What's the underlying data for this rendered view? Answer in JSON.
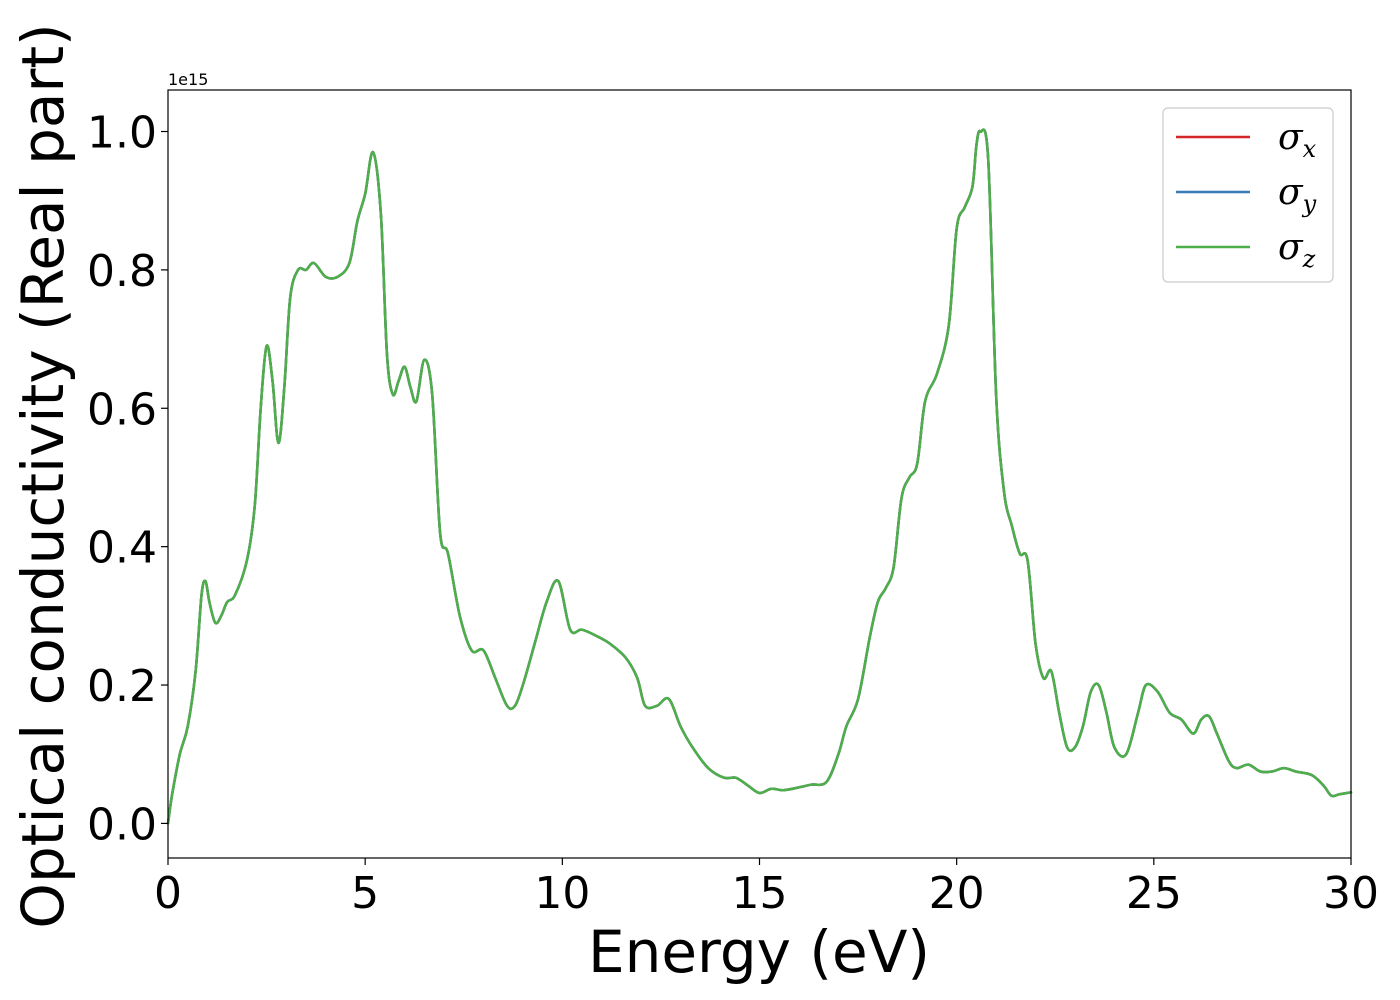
{
  "chart_data": {
    "type": "line",
    "title": "",
    "xlabel": "Energy (eV)",
    "ylabel": "Optical conductivity (Real part)",
    "y_offset_label": "1e15",
    "xlim": [
      0,
      30
    ],
    "ylim": [
      -0.05,
      1.06
    ],
    "x_ticks": [
      0,
      5,
      10,
      15,
      20,
      25,
      30
    ],
    "x_tick_labels": [
      "0",
      "5",
      "10",
      "15",
      "20",
      "25",
      "30"
    ],
    "y_ticks": [
      0.0,
      0.2,
      0.4,
      0.6,
      0.8,
      1.0
    ],
    "y_tick_labels": [
      "0.0",
      "0.2",
      "0.4",
      "0.6",
      "0.8",
      "1.0"
    ],
    "grid": false,
    "legend_position": "top-right",
    "x": [
      0,
      0.1,
      0.3,
      0.5,
      0.7,
      0.85,
      0.95,
      1.05,
      1.2,
      1.35,
      1.5,
      1.7,
      2.0,
      2.2,
      2.35,
      2.5,
      2.65,
      2.8,
      2.95,
      3.1,
      3.3,
      3.5,
      3.7,
      4.0,
      4.3,
      4.6,
      4.8,
      5.0,
      5.2,
      5.4,
      5.55,
      5.7,
      5.85,
      6.0,
      6.15,
      6.3,
      6.5,
      6.7,
      6.9,
      7.1,
      7.4,
      7.7,
      8.0,
      8.3,
      8.6,
      8.8,
      9.0,
      9.3,
      9.6,
      9.9,
      10.2,
      10.5,
      10.9,
      11.2,
      11.6,
      11.9,
      12.1,
      12.4,
      12.7,
      13.0,
      13.3,
      13.7,
      14.1,
      14.4,
      14.7,
      15.0,
      15.3,
      15.6,
      16.0,
      16.3,
      16.7,
      17.0,
      17.2,
      17.5,
      17.8,
      18.0,
      18.2,
      18.4,
      18.6,
      18.8,
      19.0,
      19.2,
      19.5,
      19.8,
      20.0,
      20.2,
      20.4,
      20.5,
      20.6,
      20.8,
      21.0,
      21.2,
      21.4,
      21.6,
      21.8,
      22.0,
      22.2,
      22.4,
      22.6,
      22.8,
      23.0,
      23.2,
      23.4,
      23.6,
      23.8,
      24.0,
      24.3,
      24.6,
      24.8,
      25.1,
      25.4,
      25.7,
      26.0,
      26.2,
      26.4,
      26.6,
      26.9,
      27.1,
      27.4,
      27.7,
      28.0,
      28.3,
      28.6,
      29.0,
      29.3,
      29.5,
      29.7,
      30.0
    ],
    "series": [
      {
        "name": "σx",
        "color": "#d62728",
        "values": [
          0.0,
          0.04,
          0.1,
          0.14,
          0.22,
          0.33,
          0.35,
          0.32,
          0.29,
          0.3,
          0.32,
          0.33,
          0.38,
          0.46,
          0.6,
          0.69,
          0.64,
          0.55,
          0.63,
          0.76,
          0.8,
          0.8,
          0.81,
          0.79,
          0.79,
          0.81,
          0.87,
          0.91,
          0.97,
          0.88,
          0.68,
          0.62,
          0.64,
          0.66,
          0.63,
          0.61,
          0.67,
          0.62,
          0.42,
          0.39,
          0.3,
          0.25,
          0.25,
          0.21,
          0.17,
          0.17,
          0.2,
          0.26,
          0.32,
          0.35,
          0.28,
          0.28,
          0.27,
          0.26,
          0.24,
          0.21,
          0.17,
          0.17,
          0.18,
          0.14,
          0.11,
          0.08,
          0.066,
          0.066,
          0.055,
          0.044,
          0.05,
          0.048,
          0.052,
          0.056,
          0.06,
          0.1,
          0.14,
          0.18,
          0.27,
          0.32,
          0.34,
          0.37,
          0.47,
          0.5,
          0.52,
          0.61,
          0.65,
          0.72,
          0.86,
          0.89,
          0.92,
          0.98,
          1.0,
          0.96,
          0.62,
          0.48,
          0.43,
          0.39,
          0.38,
          0.26,
          0.21,
          0.22,
          0.16,
          0.11,
          0.11,
          0.14,
          0.19,
          0.2,
          0.16,
          0.11,
          0.1,
          0.16,
          0.2,
          0.19,
          0.16,
          0.15,
          0.13,
          0.15,
          0.155,
          0.13,
          0.09,
          0.08,
          0.085,
          0.075,
          0.075,
          0.08,
          0.075,
          0.07,
          0.055,
          0.04,
          0.042,
          0.045
        ]
      },
      {
        "name": "σy",
        "color": "#377eb8",
        "values": [
          0.0,
          0.04,
          0.1,
          0.14,
          0.22,
          0.33,
          0.35,
          0.32,
          0.29,
          0.3,
          0.32,
          0.33,
          0.38,
          0.46,
          0.6,
          0.69,
          0.64,
          0.55,
          0.63,
          0.76,
          0.8,
          0.8,
          0.81,
          0.79,
          0.79,
          0.81,
          0.87,
          0.91,
          0.97,
          0.88,
          0.68,
          0.62,
          0.64,
          0.66,
          0.63,
          0.61,
          0.67,
          0.62,
          0.42,
          0.39,
          0.3,
          0.25,
          0.25,
          0.21,
          0.17,
          0.17,
          0.2,
          0.26,
          0.32,
          0.35,
          0.28,
          0.28,
          0.27,
          0.26,
          0.24,
          0.21,
          0.17,
          0.17,
          0.18,
          0.14,
          0.11,
          0.08,
          0.066,
          0.066,
          0.055,
          0.044,
          0.05,
          0.048,
          0.052,
          0.056,
          0.06,
          0.1,
          0.14,
          0.18,
          0.27,
          0.32,
          0.34,
          0.37,
          0.47,
          0.5,
          0.52,
          0.61,
          0.65,
          0.72,
          0.86,
          0.89,
          0.92,
          0.98,
          1.0,
          0.96,
          0.62,
          0.48,
          0.43,
          0.39,
          0.38,
          0.26,
          0.21,
          0.22,
          0.16,
          0.11,
          0.11,
          0.14,
          0.19,
          0.2,
          0.16,
          0.11,
          0.1,
          0.16,
          0.2,
          0.19,
          0.16,
          0.15,
          0.13,
          0.15,
          0.155,
          0.13,
          0.09,
          0.08,
          0.085,
          0.075,
          0.075,
          0.08,
          0.075,
          0.07,
          0.055,
          0.04,
          0.042,
          0.045
        ]
      },
      {
        "name": "σz",
        "color": "#4daf4a",
        "values": [
          0.0,
          0.04,
          0.1,
          0.14,
          0.22,
          0.33,
          0.35,
          0.32,
          0.29,
          0.3,
          0.32,
          0.33,
          0.38,
          0.46,
          0.6,
          0.69,
          0.64,
          0.55,
          0.63,
          0.76,
          0.8,
          0.8,
          0.81,
          0.79,
          0.79,
          0.81,
          0.87,
          0.91,
          0.97,
          0.88,
          0.68,
          0.62,
          0.64,
          0.66,
          0.63,
          0.61,
          0.67,
          0.62,
          0.42,
          0.39,
          0.3,
          0.25,
          0.25,
          0.21,
          0.17,
          0.17,
          0.2,
          0.26,
          0.32,
          0.35,
          0.28,
          0.28,
          0.27,
          0.26,
          0.24,
          0.21,
          0.17,
          0.17,
          0.18,
          0.14,
          0.11,
          0.08,
          0.066,
          0.066,
          0.055,
          0.044,
          0.05,
          0.048,
          0.052,
          0.056,
          0.06,
          0.1,
          0.14,
          0.18,
          0.27,
          0.32,
          0.34,
          0.37,
          0.47,
          0.5,
          0.52,
          0.61,
          0.65,
          0.72,
          0.86,
          0.89,
          0.92,
          0.98,
          1.0,
          0.96,
          0.62,
          0.48,
          0.43,
          0.39,
          0.38,
          0.26,
          0.21,
          0.22,
          0.16,
          0.11,
          0.11,
          0.14,
          0.19,
          0.2,
          0.16,
          0.11,
          0.1,
          0.16,
          0.2,
          0.19,
          0.16,
          0.15,
          0.13,
          0.15,
          0.155,
          0.13,
          0.09,
          0.08,
          0.085,
          0.075,
          0.075,
          0.08,
          0.075,
          0.07,
          0.055,
          0.04,
          0.042,
          0.045
        ]
      }
    ],
    "legend": [
      {
        "symbol": "σ",
        "sub": "x",
        "color": "#d62728"
      },
      {
        "symbol": "σ",
        "sub": "y",
        "color": "#377eb8"
      },
      {
        "symbol": "σ",
        "sub": "z",
        "color": "#4daf4a"
      }
    ]
  }
}
